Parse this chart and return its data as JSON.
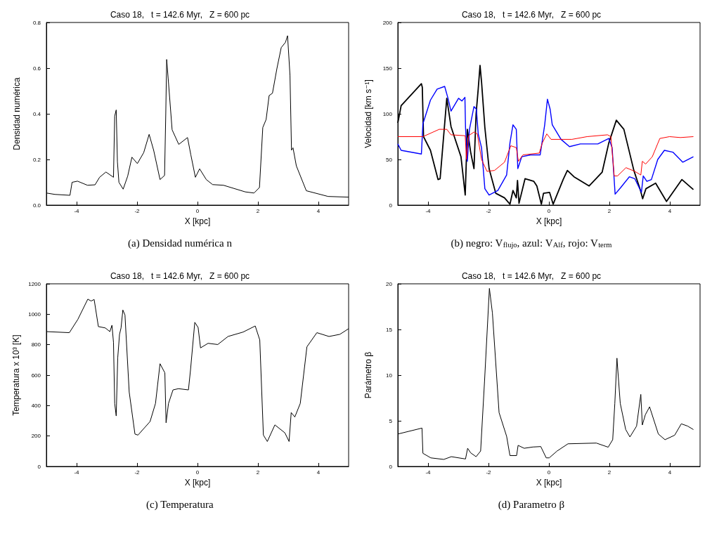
{
  "chart_data": [
    {
      "type": "line",
      "title": "Caso 18,   t = 142.6 Myr,   Z = 600 pc",
      "xlabel": "X [kpc]",
      "ylabel": "Densidad numérica",
      "annotations": [
        "(a) Densidad numérica n"
      ],
      "xlim": [
        -5,
        5
      ],
      "xticks": [
        -4,
        -2,
        0,
        2,
        4
      ],
      "ylim": [
        0,
        0.8
      ],
      "yticks": [
        {
          "value": 0,
          "label": "0.0"
        },
        {
          "value": 0.2,
          "label": "0.2"
        },
        {
          "value": 0.4,
          "label": "0.4"
        },
        {
          "value": 0.6,
          "label": "0.6"
        },
        {
          "value": 0.8,
          "label": "0.8"
        }
      ],
      "series": [
        {
          "color": "#000000",
          "x": [
            -5,
            -4.72,
            -4.22,
            -4.15,
            -3.97,
            -3.64,
            -3.39,
            -3.24,
            -3.03,
            -2.78,
            -2.74,
            -2.69,
            -2.65,
            -2.6,
            -2.46,
            -2.31,
            -2.17,
            -1.99,
            -1.78,
            -1.6,
            -1.45,
            -1.24,
            -1.09,
            -1.05,
            -1.02,
            -0.97,
            -0.84,
            -0.62,
            -0.33,
            -0.22,
            -0.07,
            0.07,
            0.29,
            0.5,
            0.86,
            1.58,
            1.87,
            2.05,
            2.16,
            2.27,
            2.37,
            2.48,
            2.63,
            2.77,
            2.91,
            2.98,
            3.06,
            3.11,
            3.16,
            3.27,
            3.6,
            4.32,
            5
          ],
          "values": [
            0.053,
            0.047,
            0.043,
            0.1,
            0.105,
            0.087,
            0.089,
            0.122,
            0.145,
            0.122,
            0.39,
            0.417,
            0.19,
            0.1,
            0.07,
            0.127,
            0.21,
            0.182,
            0.23,
            0.31,
            0.24,
            0.112,
            0.13,
            0.4,
            0.638,
            0.554,
            0.33,
            0.266,
            0.296,
            0.22,
            0.122,
            0.159,
            0.112,
            0.09,
            0.087,
            0.058,
            0.053,
            0.077,
            0.34,
            0.375,
            0.48,
            0.49,
            0.6,
            0.69,
            0.713,
            0.742,
            0.569,
            0.241,
            0.251,
            0.172,
            0.063,
            0.038,
            0.035
          ]
        }
      ]
    },
    {
      "type": "line",
      "title": "Caso 18,   t = 142.6 Myr,   Z = 600 pc",
      "xlabel": "X [kpc]",
      "ylabel": "Velocidad [km s⁻¹]",
      "annotations": [
        "(b) negro: V$_{flujo}$, azul: V$_{Alf}$, rojo: V$_{term}$"
      ],
      "xlim": [
        -5,
        5
      ],
      "xticks": [
        -4,
        -2,
        0,
        2,
        4
      ],
      "ylim": [
        0,
        200
      ],
      "yticks": [
        0,
        50,
        100,
        150,
        200
      ],
      "series": [
        {
          "color": "#000000",
          "x": [
            -5,
            -4.89,
            -4.75,
            -4.22,
            -4.19,
            -4.15,
            -3.92,
            -3.67,
            -3.6,
            -3.38,
            -3.24,
            -2.91,
            -2.77,
            -2.7,
            -2.59,
            -2.48,
            -2.41,
            -2.34,
            -2.28,
            -2.23,
            -2.12,
            -1.98,
            -1.76,
            -1.47,
            -1.29,
            -1.19,
            -1.08,
            -1.04,
            -0.99,
            -0.79,
            -0.5,
            -0.4,
            -0.25,
            -0.18,
            0.02,
            0.14,
            0.47,
            0.61,
            0.83,
            1.33,
            1.76,
            1.98,
            2.23,
            2.48,
            2.81,
            3.03,
            3.1,
            3.21,
            3.53,
            3.89,
            4.4,
            4.78
          ],
          "values": [
            90,
            109,
            114,
            133,
            129,
            75,
            60,
            28,
            29,
            117,
            86,
            53,
            11,
            83,
            58,
            40,
            100,
            127,
            153,
            135,
            85,
            40,
            13,
            8,
            1,
            16,
            8,
            27,
            2,
            29,
            26,
            21,
            1,
            13,
            14,
            1,
            28,
            38,
            31,
            21,
            36,
            68,
            93,
            83,
            38,
            16,
            7,
            18,
            24,
            4,
            28,
            17
          ]
        },
        {
          "color": "#0000ff",
          "x": [
            -5,
            -4.89,
            -4.22,
            -4.17,
            -3.92,
            -3.7,
            -3.45,
            -3.34,
            -3.24,
            -2.99,
            -2.88,
            -2.78,
            -2.76,
            -2.7,
            -2.63,
            -2.48,
            -2.4,
            -2.34,
            -2.23,
            -2.12,
            -1.98,
            -1.69,
            -1.4,
            -1.29,
            -1.19,
            -1.08,
            -1.03,
            -0.9,
            -0.61,
            -0.29,
            -0.14,
            -0.05,
            0.04,
            0.11,
            0.4,
            0.68,
            1.04,
            1.62,
            1.98,
            2.09,
            2.19,
            2.37,
            2.66,
            2.84,
            3.06,
            3.12,
            3.24,
            3.39,
            3.6,
            3.82,
            4.1,
            4.43,
            4.78
          ],
          "values": [
            67,
            60,
            56,
            89,
            115,
            127,
            130,
            117,
            103,
            117,
            114,
            118,
            85,
            48,
            83,
            108,
            105,
            78,
            63,
            18,
            11,
            16,
            33,
            68,
            88,
            83,
            40,
            53,
            55,
            55,
            88,
            116,
            105,
            88,
            72,
            64,
            67,
            67,
            73,
            63,
            12,
            19,
            31,
            29,
            14,
            32,
            26,
            28,
            50,
            60,
            58,
            47,
            53
          ]
        },
        {
          "color": "#ff0000",
          "x": [
            -5,
            -4.17,
            -3.63,
            -3.38,
            -3.24,
            -2.77,
            -2.73,
            -2.66,
            -2.48,
            -2.37,
            -2.23,
            -2.05,
            -1.8,
            -1.47,
            -1.26,
            -1.08,
            -1.01,
            -0.86,
            -0.32,
            -0.22,
            -0.07,
            0.07,
            0.4,
            0.76,
            1.26,
            1.94,
            2.05,
            2.16,
            2.27,
            2.55,
            2.84,
            3.04,
            3.09,
            3.2,
            3.42,
            3.67,
            3.99,
            4.35,
            4.78
          ],
          "values": [
            75,
            75,
            83,
            83,
            77,
            76,
            50,
            76,
            80,
            78,
            50,
            37,
            38,
            47,
            65,
            63,
            48,
            55,
            57,
            68,
            78,
            72,
            72,
            72,
            75,
            77,
            75,
            32,
            32,
            41,
            37,
            33,
            48,
            45,
            53,
            73,
            75,
            74,
            75
          ]
        }
      ]
    },
    {
      "type": "line",
      "title": "Caso 18,   t = 142.6 Myr,   Z = 600 pc",
      "xlabel": "X [kpc]",
      "ylabel": "Temperatura x 10³ [K]",
      "annotations": [
        "(c) Temperatura"
      ],
      "xlim": [
        -5,
        5
      ],
      "xticks": [
        -4,
        -2,
        0,
        2,
        4
      ],
      "ylim": [
        0,
        1200
      ],
      "yticks": [
        0,
        200,
        400,
        600,
        800,
        1000,
        1200
      ],
      "series": [
        {
          "color": "#000000",
          "x": [
            -5,
            -4.24,
            -3.96,
            -3.63,
            -3.52,
            -3.42,
            -3.28,
            -3.05,
            -2.9,
            -2.83,
            -2.78,
            -2.74,
            -2.69,
            -2.64,
            -2.58,
            -2.53,
            -2.47,
            -2.4,
            -2.26,
            -2.07,
            -1.97,
            -1.57,
            -1.39,
            -1.24,
            -1.08,
            -1.04,
            -0.96,
            -0.81,
            -0.63,
            -0.3,
            -0.23,
            -0.09,
            0.02,
            0.1,
            0.35,
            0.67,
            1.01,
            1.51,
            1.91,
            2.06,
            2.18,
            2.31,
            2.56,
            2.89,
            3.03,
            3.1,
            3.22,
            3.4,
            3.62,
            3.95,
            4.35,
            4.71,
            5
          ],
          "values": [
            886,
            879,
            966,
            1099,
            1087,
            1097,
            919,
            910,
            886,
            928,
            816,
            414,
            332,
            712,
            868,
            910,
            1028,
            995,
            489,
            213,
            206,
            295,
            414,
            675,
            615,
            287,
            414,
            503,
            511,
            503,
            637,
            947,
            913,
            779,
            809,
            801,
            854,
            883,
            923,
            831,
            206,
            164,
            273,
            221,
            164,
            354,
            325,
            414,
            786,
            879,
            854,
            868,
            905
          ]
        }
      ]
    },
    {
      "type": "line",
      "title": "Caso 18,   t = 142.6 Myr,   Z = 600 pc",
      "xlabel": "X [kpc]",
      "ylabel": "Parámetro β",
      "annotations": [
        "(d) Parametro β"
      ],
      "xlim": [
        -5,
        5
      ],
      "xticks": [
        -4,
        -2,
        0,
        2,
        4
      ],
      "ylim": [
        0,
        20
      ],
      "yticks": [
        0,
        5,
        10,
        15,
        20
      ],
      "series": [
        {
          "color": "#000000",
          "x": [
            -5,
            -4.2,
            -4.17,
            -3.91,
            -3.48,
            -3.23,
            -2.76,
            -2.69,
            -2.59,
            -2.41,
            -2.26,
            -2.13,
            -1.97,
            -1.87,
            -1.65,
            -1.4,
            -1.29,
            -1.07,
            -1.02,
            -0.82,
            -0.53,
            -0.27,
            -0.09,
            0.01,
            0.27,
            0.63,
            1.57,
            1.96,
            2.11,
            2.18,
            2.25,
            2.36,
            2.54,
            2.68,
            2.9,
            3.04,
            3.09,
            3.19,
            3.33,
            3.62,
            3.84,
            4.16,
            4.38,
            4.59,
            4.78
          ],
          "values": [
            3.55,
            4.2,
            1.44,
            0.94,
            0.77,
            1.07,
            0.82,
            1.99,
            1.49,
            1.07,
            1.69,
            9.38,
            19.5,
            16.8,
            5.9,
            3.3,
            1.19,
            1.19,
            2.31,
            1.99,
            2.13,
            2.18,
            0.94,
            0.94,
            1.69,
            2.48,
            2.56,
            2.11,
            2.93,
            6.9,
            11.86,
            6.9,
            4.04,
            3.23,
            4.42,
            7.89,
            4.54,
            5.66,
            6.53,
            3.55,
            2.93,
            3.42,
            4.67,
            4.42,
            4.04
          ]
        }
      ]
    }
  ]
}
